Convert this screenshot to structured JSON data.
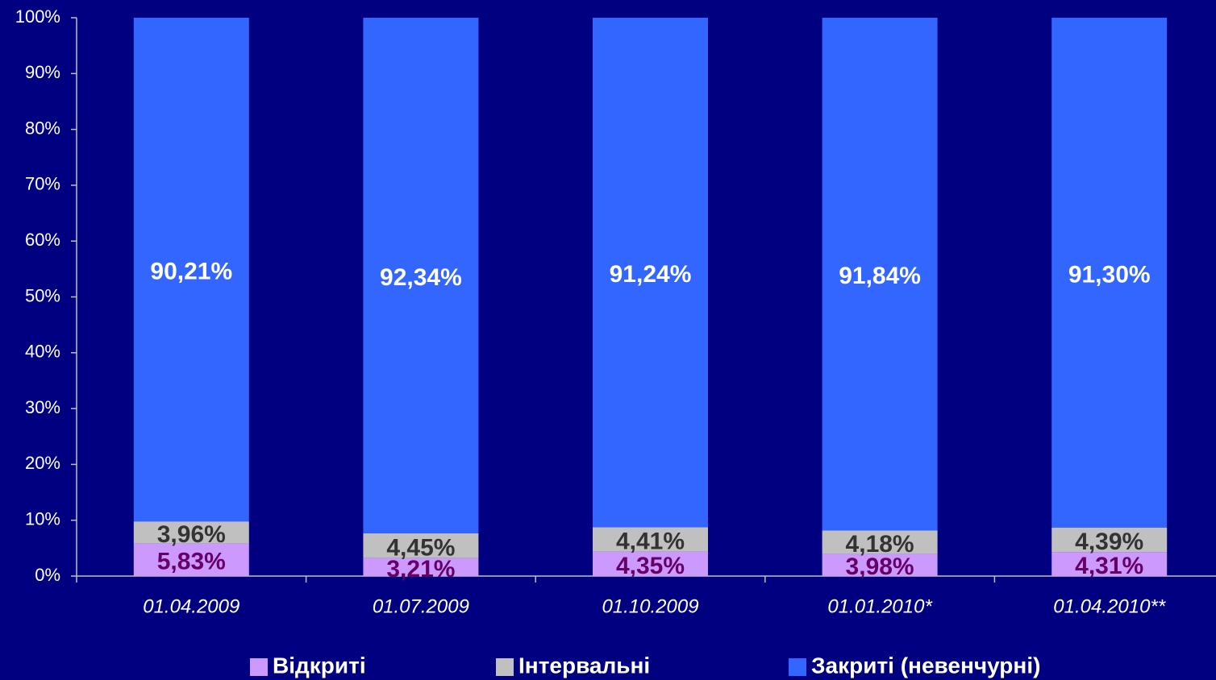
{
  "chart_data": {
    "type": "stacked_bar",
    "categories": [
      "01.04.2009",
      "01.07.2009",
      "01.10.2009",
      "01.01.2010*",
      "01.04.2010**"
    ],
    "series": [
      {
        "name": "Відкриті",
        "color": "#cc99ff",
        "label_color": "#660066",
        "values": [
          5.83,
          3.21,
          4.35,
          3.98,
          4.31
        ],
        "value_labels": [
          "5,83%",
          "3,21%",
          "4,35%",
          "3,98%",
          "4,31%"
        ]
      },
      {
        "name": "Інтервальні",
        "color": "#c0c0c0",
        "label_color": "#333333",
        "values": [
          3.96,
          4.45,
          4.41,
          4.18,
          4.39
        ],
        "value_labels": [
          "3,96%",
          "4,45%",
          "4,41%",
          "4,18%",
          "4,39%"
        ]
      },
      {
        "name": "Закриті (невенчурні)",
        "color": "#3366ff",
        "label_color": "#ffffff",
        "values": [
          90.21,
          92.34,
          91.24,
          91.84,
          91.3
        ],
        "value_labels": [
          "90,21%",
          "92,34%",
          "91,24%",
          "91,84%",
          "91,30%"
        ]
      }
    ],
    "ylim": [
      0,
      100
    ],
    "yticks": [
      {
        "value": 0,
        "label": "0%"
      },
      {
        "value": 10,
        "label": "10%"
      },
      {
        "value": 20,
        "label": "20%"
      },
      {
        "value": 30,
        "label": "30%"
      },
      {
        "value": 40,
        "label": "40%"
      },
      {
        "value": 50,
        "label": "50%"
      },
      {
        "value": 60,
        "label": "60%"
      },
      {
        "value": 70,
        "label": "70%"
      },
      {
        "value": 80,
        "label": "80%"
      },
      {
        "value": 90,
        "label": "90%"
      },
      {
        "value": 100,
        "label": "100%"
      }
    ],
    "background": "#000080"
  }
}
